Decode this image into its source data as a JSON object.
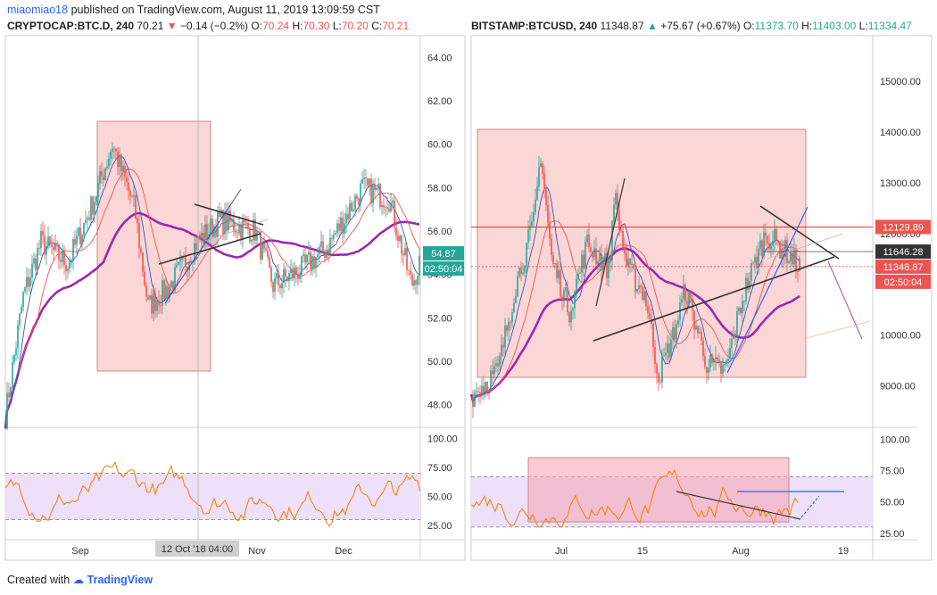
{
  "header": {
    "author": "miaomiao18",
    "published": " published on TradingView.com, August 11, 2019 13:09:59 CST"
  },
  "footer": {
    "created_with": "Created with",
    "brand": "TradingView"
  },
  "chart_data": [
    {
      "type": "candlestick",
      "symbol": "CRYPTOCAP:BTC.D, 240",
      "last": "70.21",
      "change": "−0.14 (−0.2%)",
      "ohlc": {
        "O": "70.24",
        "H": "70.30",
        "L": "70.20",
        "C": "70.21"
      },
      "y_axis": {
        "ticks": [
          "64.00",
          "62.00",
          "60.00",
          "58.00",
          "56.00",
          "54.00",
          "52.00",
          "50.00",
          "48.00"
        ],
        "range": [
          47.0,
          65.0
        ]
      },
      "x_axis": {
        "ticks": [
          "Sep",
          "Nov",
          "Dec"
        ]
      },
      "crosshair_label": "12 Oct '18   04:00",
      "price_labels": [
        {
          "text": "54.87",
          "color": "#26a69a"
        },
        {
          "text": "02:50:04",
          "color": "#26a69a"
        }
      ],
      "highlight_box": "pink",
      "indicator": {
        "name": "RSI",
        "ticks": [
          "100.00",
          "75.00",
          "50.00",
          "25.00"
        ],
        "range": [
          15,
          108
        ],
        "bands": [
          70,
          30
        ]
      }
    },
    {
      "type": "candlestick",
      "symbol": "BITSTAMP:BTCUSD, 240",
      "last": "11348.87",
      "change": "+75.67 (+0.67%)",
      "ohlc": {
        "O": "11373.70",
        "H": "11403.00",
        "L": "11334.47"
      },
      "y_axis": {
        "ticks": [
          "15000.00",
          "14000.00",
          "13000.00",
          "12000.00",
          "11000.00",
          "10000.00",
          "9000.00"
        ],
        "range": [
          8200,
          15900
        ]
      },
      "x_axis": {
        "ticks": [
          "Jul",
          "15",
          "Aug",
          "19"
        ]
      },
      "price_labels": [
        {
          "text": "12129.89",
          "color": "#ef5350",
          "value": 12129.89
        },
        {
          "text": "11646.28",
          "color": "#333333",
          "value": 11646.28
        },
        {
          "text": "11348.87",
          "color": "#ef5350",
          "value": 11348.87
        },
        {
          "text": "02:50:04",
          "color": "#ef5350",
          "value": 11050
        }
      ],
      "highlight_box": "pink",
      "indicator": {
        "name": "RSI",
        "ticks": [
          "100.00",
          "75.00",
          "50.00",
          "25.00"
        ],
        "range": [
          22,
          108
        ],
        "bands": [
          70,
          30
        ]
      }
    }
  ]
}
